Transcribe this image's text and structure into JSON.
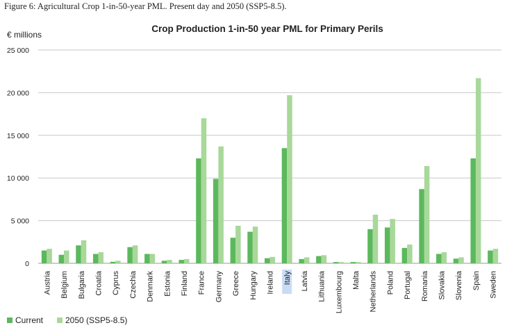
{
  "caption": "Figure 6: Agricultural Crop 1-in-50-year PML. Present day and 2050 (SSP5-8.5).",
  "chart_data": {
    "type": "bar",
    "title": "Crop Production 1-in-50 year PML for Primary Perils",
    "unit_label": "€ millions",
    "ylim": [
      0,
      25000
    ],
    "yticks": [
      0,
      5000,
      10000,
      15000,
      20000,
      25000
    ],
    "ytick_labels": [
      "0",
      "5 000",
      "10 000",
      "15 000",
      "20 000",
      "25 000"
    ],
    "grid": true,
    "legend_position": "bottom-left",
    "highlighted_category": "Italy",
    "categories": [
      "Austria",
      "Belgium",
      "Bulgaria",
      "Croatia",
      "Cyprus",
      "Czechia",
      "Denmark",
      "Estonia",
      "Finland",
      "France",
      "Germany",
      "Greece",
      "Hungary",
      "Ireland",
      "Italy",
      "Latvia",
      "Lithuania",
      "Luxembourg",
      "Malta",
      "Netherlands",
      "Poland",
      "Portugal",
      "Romania",
      "Slovakia",
      "Slovenia",
      "Spain",
      "Sweden"
    ],
    "series": [
      {
        "name": "Current",
        "color": "#5cb85c",
        "values": [
          1500,
          1000,
          2100,
          1100,
          180,
          1900,
          1100,
          300,
          400,
          12300,
          9900,
          3000,
          3700,
          600,
          13500,
          500,
          850,
          150,
          150,
          4000,
          4200,
          1800,
          8700,
          1100,
          550,
          12300,
          1500
        ]
      },
      {
        "name": "2050 (SSP5-8.5)",
        "color": "#a8d89a",
        "values": [
          1700,
          1500,
          2700,
          1300,
          300,
          2100,
          1100,
          400,
          500,
          17000,
          13700,
          4400,
          4300,
          750,
          19700,
          700,
          950,
          150,
          150,
          5700,
          5200,
          2200,
          11400,
          1300,
          700,
          21700,
          1700
        ]
      }
    ]
  }
}
